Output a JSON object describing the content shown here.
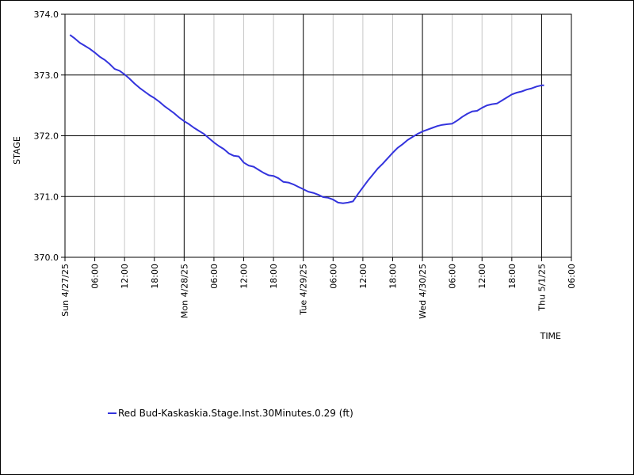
{
  "chart_data": {
    "type": "line",
    "title": "",
    "xlabel": "TIME",
    "ylabel": "STAGE",
    "ylim": [
      370.0,
      374.0
    ],
    "y_ticks": [
      "374.0",
      "373.0",
      "372.0",
      "371.0",
      "370.0"
    ],
    "x_ticks": [
      "Sun 4/27/25",
      "06:00",
      "12:00",
      "18:00",
      "Mon 4/28/25",
      "06:00",
      "12:00",
      "18:00",
      "Tue 4/29/25",
      "06:00",
      "12:00",
      "18:00",
      "Wed 4/30/25",
      "06:00",
      "12:00",
      "18:00",
      "Thu 5/1/25",
      "06:00"
    ],
    "x_range_hours": [
      0,
      102
    ],
    "grid": true,
    "legend_position": "bottom-left",
    "series": [
      {
        "name": "Red Bud-Kaskaskia.Stage.Inst.30Minutes.0.29 (ft)",
        "color": "#3333dd",
        "x_hours": [
          1,
          2,
          3,
          4,
          5,
          6,
          7,
          8,
          9,
          10,
          11,
          12,
          13,
          14,
          15,
          16,
          17,
          18,
          19,
          20,
          21,
          22,
          23,
          24,
          25,
          26,
          27,
          28,
          29,
          30,
          31,
          32,
          33,
          34,
          35,
          36,
          37,
          38,
          39,
          40,
          41,
          42,
          43,
          44,
          45,
          46,
          47,
          48,
          49,
          50,
          51,
          52,
          53,
          54,
          55,
          56,
          57,
          58,
          59,
          60,
          61,
          62,
          63,
          64,
          65,
          66,
          67,
          68,
          69,
          70,
          71,
          72,
          73,
          74,
          75,
          76,
          77,
          78,
          79,
          80,
          81,
          82,
          83,
          84,
          85,
          86,
          87,
          88,
          89,
          90,
          91,
          92,
          93,
          94,
          95,
          96,
          96.5
        ],
        "values": [
          373.66,
          373.6,
          373.53,
          373.48,
          373.43,
          373.37,
          373.3,
          373.25,
          373.18,
          373.1,
          373.07,
          373.01,
          372.94,
          372.86,
          372.79,
          372.73,
          372.67,
          372.62,
          372.56,
          372.49,
          372.43,
          372.37,
          372.3,
          372.24,
          372.19,
          372.13,
          372.08,
          372.03,
          371.96,
          371.89,
          371.83,
          371.78,
          371.71,
          371.67,
          371.66,
          371.56,
          371.51,
          371.49,
          371.44,
          371.39,
          371.35,
          371.34,
          371.3,
          371.24,
          371.23,
          371.2,
          371.16,
          371.12,
          371.08,
          371.06,
          371.03,
          370.99,
          370.98,
          370.95,
          370.9,
          370.89,
          370.9,
          370.92,
          371.04,
          371.15,
          371.26,
          371.36,
          371.46,
          371.54,
          371.63,
          371.72,
          371.8,
          371.86,
          371.93,
          371.98,
          372.03,
          372.07,
          372.1,
          372.13,
          372.16,
          372.18,
          372.19,
          372.2,
          372.25,
          372.31,
          372.36,
          372.4,
          372.41,
          372.46,
          372.5,
          372.52,
          372.53,
          372.58,
          372.63,
          372.68,
          372.71,
          372.73,
          372.76,
          372.78,
          372.81,
          372.83,
          372.83
        ]
      }
    ]
  }
}
